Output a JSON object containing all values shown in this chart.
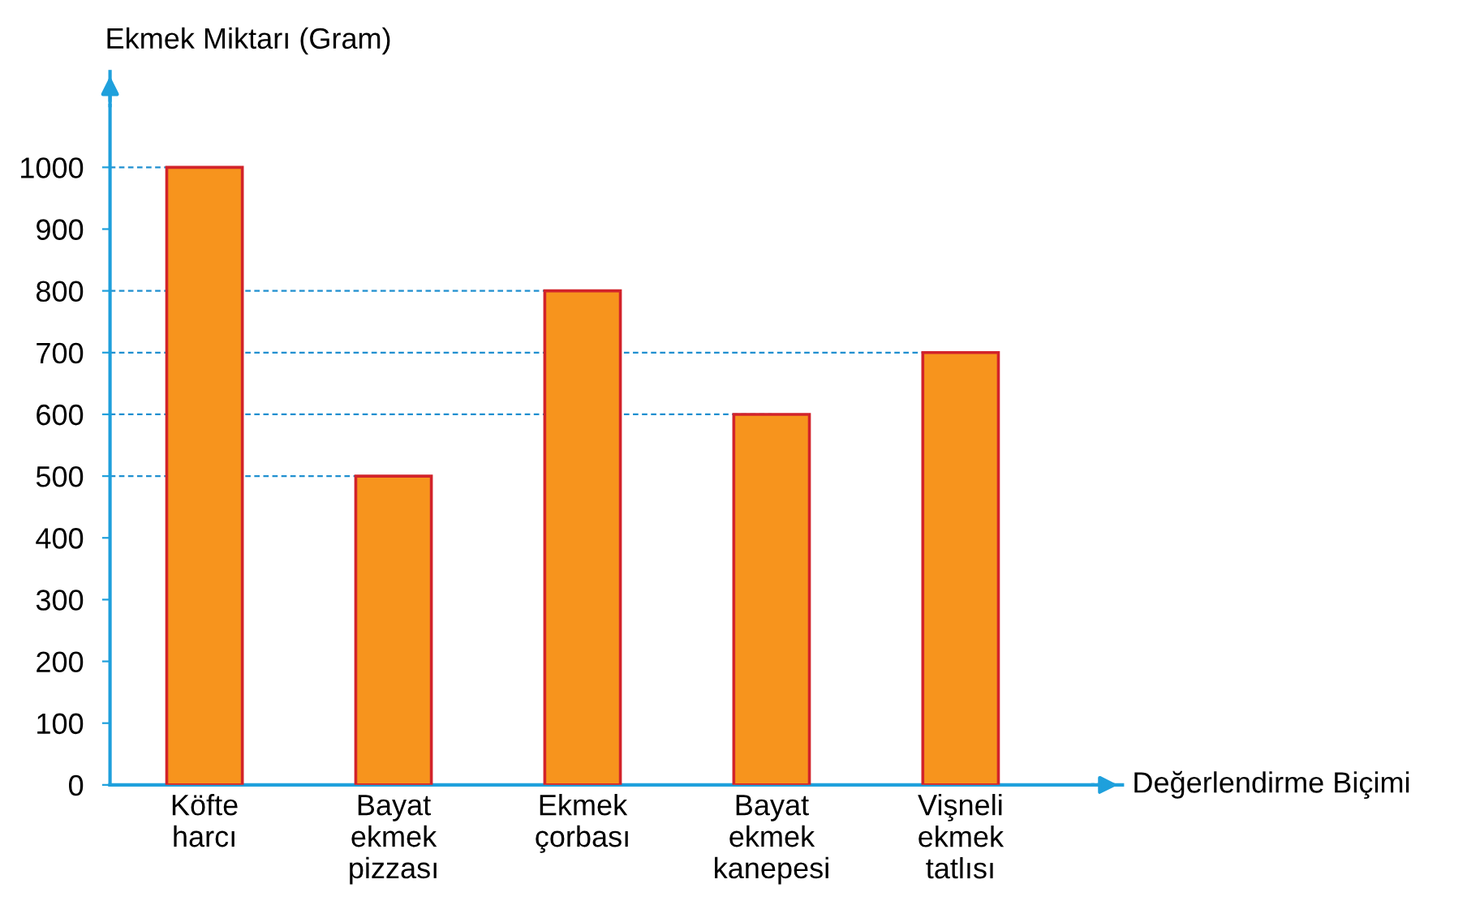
{
  "chart_data": {
    "type": "bar",
    "xlabel": "Değerlendirme Biçimi",
    "ylabel": "Ekmek Miktarı (Gram)",
    "categories": [
      "Köfte\nharcı",
      "Bayat\nekmek\npizzası",
      "Ekmek\nçorbası",
      "Bayat\nekmek\nkanepesi",
      "Vişneli\nekmek\ntatlısı"
    ],
    "values": [
      1000,
      500,
      800,
      600,
      700
    ],
    "color": "#f7941d",
    "ylim": [
      0,
      1100
    ],
    "yticks": [
      0,
      100,
      200,
      300,
      400,
      500,
      600,
      700,
      800,
      900,
      1000
    ],
    "ref_lines": [
      {
        "axis": "y",
        "value": 1000,
        "color": "#1f8fd0",
        "line_style": "dashed"
      },
      {
        "axis": "y",
        "value": 800,
        "color": "#1f8fd0",
        "line_style": "dashed"
      },
      {
        "axis": "y",
        "value": 700,
        "color": "#1f8fd0",
        "line_style": "dashed"
      },
      {
        "axis": "y",
        "value": 600,
        "color": "#1f8fd0",
        "line_style": "dashed"
      },
      {
        "axis": "y",
        "value": 500,
        "color": "#1f8fd0",
        "line_style": "dashed"
      }
    ],
    "grid": false
  }
}
